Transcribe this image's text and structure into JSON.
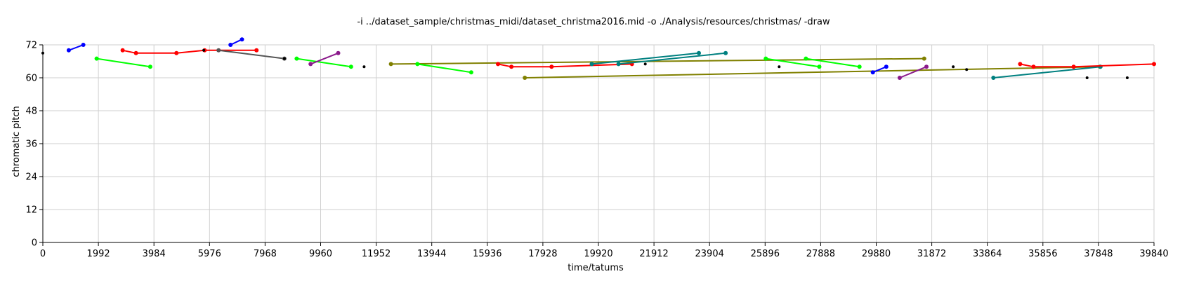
{
  "chart_data": {
    "type": "line",
    "title": "-i ../dataset_sample/christmas_midi/dataset_christma2016.mid -o ./Analysis/resources/christmas/ -draw",
    "xlabel": "time/tatums",
    "ylabel": "chromatic pitch",
    "xlim": [
      0,
      39840
    ],
    "ylim": [
      0,
      72
    ],
    "xticks": [
      "0",
      "1992",
      "3984",
      "5976",
      "7968",
      "9960",
      "11952",
      "13944",
      "15936",
      "17928",
      "19920",
      "21912",
      "23904",
      "25896",
      "27888",
      "29880",
      "31872",
      "33864",
      "35856",
      "37848",
      "39840"
    ],
    "yticks": [
      "0",
      "12",
      "24",
      "36",
      "48",
      "60",
      "72"
    ],
    "grid": true,
    "colors": {
      "blue": "#0000ff",
      "green": "#00ff00",
      "red": "#ff0000",
      "black": "#000000",
      "gray": "#555555",
      "purple": "#8b1a8b",
      "olive": "#808000",
      "teal": "#008080"
    },
    "series": [
      {
        "color": "black",
        "points": [
          [
            0,
            69
          ]
        ]
      },
      {
        "color": "blue",
        "points": [
          [
            930,
            70
          ],
          [
            1450,
            72
          ]
        ]
      },
      {
        "color": "green",
        "points": [
          [
            1930,
            67
          ],
          [
            3850,
            64
          ]
        ]
      },
      {
        "color": "red",
        "points": [
          [
            2860,
            70
          ],
          [
            3340,
            69
          ],
          [
            4790,
            69
          ],
          [
            5800,
            70
          ],
          [
            7660,
            70
          ]
        ]
      },
      {
        "color": "black",
        "points": [
          [
            5770,
            70
          ]
        ]
      },
      {
        "color": "blue",
        "points": [
          [
            6730,
            72
          ],
          [
            7140,
            74
          ]
        ]
      },
      {
        "color": "gray",
        "points": [
          [
            6300,
            70
          ],
          [
            8660,
            67
          ]
        ]
      },
      {
        "color": "black",
        "points": [
          [
            8660,
            67
          ]
        ]
      },
      {
        "color": "green",
        "points": [
          [
            9100,
            67
          ],
          [
            11050,
            64
          ]
        ]
      },
      {
        "color": "purple",
        "points": [
          [
            9600,
            65
          ],
          [
            10590,
            69
          ]
        ]
      },
      {
        "color": "black",
        "points": [
          [
            11520,
            64
          ]
        ]
      },
      {
        "color": "olive",
        "points": [
          [
            12480,
            65
          ],
          [
            31600,
            67
          ]
        ]
      },
      {
        "color": "green",
        "points": [
          [
            13430,
            65
          ],
          [
            15360,
            62
          ]
        ]
      },
      {
        "color": "red",
        "points": [
          [
            16320,
            65
          ],
          [
            16800,
            64
          ],
          [
            18240,
            64
          ],
          [
            21120,
            65
          ]
        ]
      },
      {
        "color": "olive",
        "points": [
          [
            17280,
            60
          ],
          [
            37900,
            64
          ]
        ]
      },
      {
        "color": "teal",
        "points": [
          [
            19680,
            65
          ],
          [
            23520,
            69
          ]
        ]
      },
      {
        "color": "teal",
        "points": [
          [
            20640,
            65
          ],
          [
            24480,
            69
          ]
        ]
      },
      {
        "color": "black",
        "points": [
          [
            21600,
            65
          ]
        ]
      },
      {
        "color": "green",
        "points": [
          [
            25920,
            67
          ],
          [
            27840,
            64
          ]
        ]
      },
      {
        "color": "black",
        "points": [
          [
            26400,
            64
          ]
        ]
      },
      {
        "color": "green",
        "points": [
          [
            27360,
            67
          ],
          [
            29280,
            64
          ]
        ]
      },
      {
        "color": "blue",
        "points": [
          [
            29760,
            62
          ],
          [
            30240,
            64
          ]
        ]
      },
      {
        "color": "purple",
        "points": [
          [
            30720,
            60
          ],
          [
            31680,
            64
          ]
        ]
      },
      {
        "color": "black",
        "points": [
          [
            32640,
            64
          ]
        ]
      },
      {
        "color": "black",
        "points": [
          [
            33120,
            63
          ]
        ]
      },
      {
        "color": "teal",
        "points": [
          [
            34080,
            60
          ],
          [
            37920,
            64
          ]
        ]
      },
      {
        "color": "red",
        "points": [
          [
            35040,
            65
          ],
          [
            35520,
            64
          ],
          [
            36960,
            64
          ],
          [
            39840,
            65
          ]
        ]
      },
      {
        "color": "black",
        "points": [
          [
            37440,
            60
          ]
        ]
      },
      {
        "color": "black",
        "points": [
          [
            38880,
            60
          ]
        ]
      }
    ]
  }
}
